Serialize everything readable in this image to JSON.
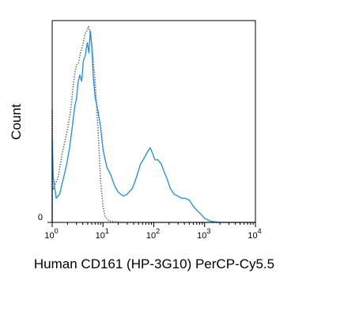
{
  "chart_data": {
    "type": "line",
    "title": "",
    "xlabel": "Human CD161 (HP-3G10) PerCP-Cy5.5",
    "ylabel": "Count",
    "x_scale": "log",
    "xlim": [
      1,
      10000
    ],
    "ylim": [
      0,
      100
    ],
    "grid": false,
    "legend": "none",
    "x_ticks": [
      {
        "base": "10",
        "exp": "0",
        "value": 1
      },
      {
        "base": "10",
        "exp": "1",
        "value": 10
      },
      {
        "base": "10",
        "exp": "2",
        "value": 100
      },
      {
        "base": "10",
        "exp": "3",
        "value": 1000
      },
      {
        "base": "10",
        "exp": "4",
        "value": 10000
      }
    ],
    "y_ticks": [
      {
        "label": "0",
        "value": 0
      }
    ],
    "series": [
      {
        "style": "dotted",
        "color": "#555555",
        "points": [
          [
            0.95,
            0
          ],
          [
            1.0,
            56
          ],
          [
            1.03,
            16
          ],
          [
            1.1,
            18
          ],
          [
            1.3,
            22
          ],
          [
            1.6,
            35
          ],
          [
            2.0,
            46
          ],
          [
            2.3,
            55
          ],
          [
            2.6,
            68
          ],
          [
            2.8,
            74
          ],
          [
            3.0,
            78
          ],
          [
            3.3,
            79
          ],
          [
            3.6,
            84
          ],
          [
            4.0,
            88
          ],
          [
            4.4,
            93
          ],
          [
            4.8,
            95
          ],
          [
            5.2,
            97
          ],
          [
            5.7,
            93
          ],
          [
            6.2,
            84
          ],
          [
            6.8,
            74
          ],
          [
            7.5,
            58
          ],
          [
            8.2,
            40
          ],
          [
            9.0,
            20
          ],
          [
            10.0,
            8
          ],
          [
            11.0,
            3
          ],
          [
            13.0,
            0.8
          ],
          [
            16.0,
            0.3
          ],
          [
            25.0,
            0
          ],
          [
            10000,
            0
          ]
        ]
      },
      {
        "style": "solid",
        "color": "#1a8bea",
        "points": [
          [
            0.95,
            0
          ],
          [
            1.0,
            42
          ],
          [
            1.05,
            22
          ],
          [
            1.2,
            12
          ],
          [
            1.4,
            14
          ],
          [
            1.6,
            20
          ],
          [
            1.9,
            28
          ],
          [
            2.2,
            37
          ],
          [
            2.5,
            48
          ],
          [
            2.8,
            58
          ],
          [
            3.0,
            61
          ],
          [
            3.2,
            69
          ],
          [
            3.5,
            73
          ],
          [
            3.8,
            70
          ],
          [
            4.1,
            80
          ],
          [
            4.5,
            83
          ],
          [
            4.9,
            89
          ],
          [
            5.3,
            84
          ],
          [
            5.6,
            95
          ],
          [
            6.0,
            88
          ],
          [
            6.4,
            73
          ],
          [
            7.0,
            62
          ],
          [
            8.0,
            55
          ],
          [
            9.0,
            47
          ],
          [
            10.0,
            36
          ],
          [
            12.0,
            27
          ],
          [
            14.0,
            24
          ],
          [
            17.0,
            18
          ],
          [
            20.0,
            15
          ],
          [
            25.0,
            13
          ],
          [
            30.0,
            14
          ],
          [
            38.0,
            17
          ],
          [
            45.0,
            22
          ],
          [
            55.0,
            29
          ],
          [
            65.0,
            32
          ],
          [
            75.0,
            35
          ],
          [
            85.0,
            37
          ],
          [
            95.0,
            34
          ],
          [
            105.0,
            31
          ],
          [
            120.0,
            31
          ],
          [
            140.0,
            29
          ],
          [
            160.0,
            25
          ],
          [
            180.0,
            22
          ],
          [
            210.0,
            17
          ],
          [
            250.0,
            14
          ],
          [
            300.0,
            13
          ],
          [
            350.0,
            12
          ],
          [
            420.0,
            12
          ],
          [
            500.0,
            11
          ],
          [
            600.0,
            8
          ],
          [
            700.0,
            6
          ],
          [
            850.0,
            4
          ],
          [
            1000.0,
            2
          ],
          [
            1300.0,
            0.6
          ],
          [
            2000.0,
            0
          ],
          [
            10000,
            0
          ]
        ]
      }
    ]
  }
}
